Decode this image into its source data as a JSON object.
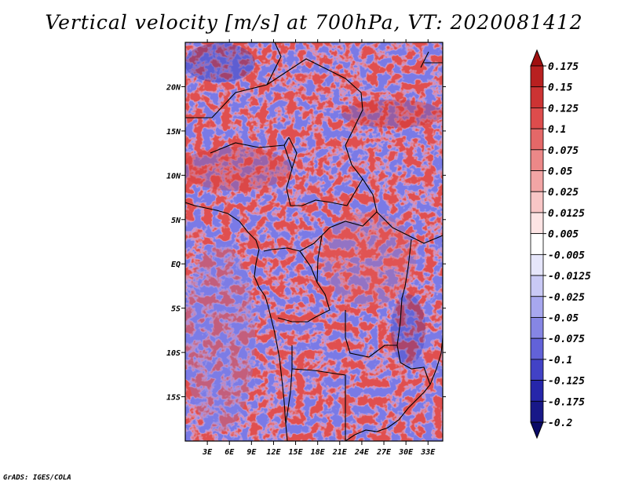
{
  "title": "Vertical velocity [m/s] at 700hPa, VT: 2020081412",
  "footer": "GrADS: IGES/COLA",
  "map": {
    "variable": "Vertical velocity",
    "units": "m/s",
    "level": "700hPa",
    "valid_time": "2020081412",
    "lon_range": [
      0,
      35
    ],
    "lat_range": [
      -20,
      25
    ],
    "x_tick_labels": [
      "3E",
      "6E",
      "9E",
      "12E",
      "15E",
      "18E",
      "21E",
      "24E",
      "27E",
      "30E",
      "33E"
    ],
    "y_tick_labels": [
      "20N",
      "15N",
      "10N",
      "5N",
      "EQ",
      "5S",
      "10S",
      "15S"
    ]
  },
  "colorbar": {
    "labels": [
      "0.175",
      "0.15",
      "0.125",
      "0.1",
      "0.075",
      "0.05",
      "0.025",
      "0.0125",
      "0.005",
      "-0.005",
      "-0.0125",
      "-0.025",
      "-0.05",
      "-0.075",
      "-0.1",
      "-0.125",
      "-0.175",
      "-0.2"
    ],
    "colors": [
      "#a01010",
      "#b82020",
      "#cc3333",
      "#dd4c4c",
      "#e46868",
      "#ec8888",
      "#f2a5a5",
      "#f8c6c6",
      "#fde4e4",
      "#ffffff",
      "#e6e6fb",
      "#c9c9f5",
      "#a7a7ee",
      "#8686e4",
      "#6262d8",
      "#4242c6",
      "#2626aa",
      "#181888",
      "#0a0a66"
    ]
  }
}
